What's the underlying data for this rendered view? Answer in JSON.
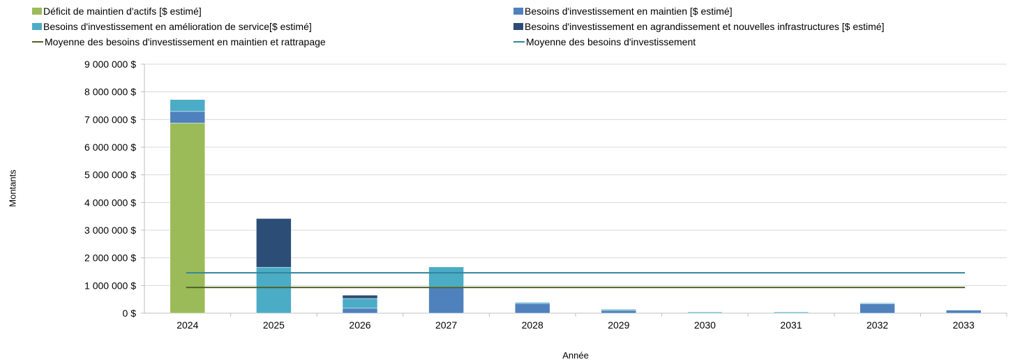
{
  "chart_data": {
    "type": "bar",
    "stacked": true,
    "title": "",
    "xlabel": "Année",
    "ylabel": "Montants",
    "ylim": [
      0,
      9000000
    ],
    "yticks": [
      "0 $",
      "1 000 000 $",
      "2 000 000 $",
      "3 000 000 $",
      "4 000 000 $",
      "5 000 000 $",
      "6 000 000 $",
      "7 000 000 $",
      "8 000 000 $",
      "9 000 000 $"
    ],
    "categories": [
      "2024",
      "2025",
      "2026",
      "2027",
      "2028",
      "2029",
      "2030",
      "2031",
      "2032",
      "2033"
    ],
    "grid": true,
    "series": [
      {
        "name": "Déficit de maintien d'actifs [$ estimé]",
        "color": "#9bbb59",
        "values": [
          6870000,
          0,
          0,
          0,
          0,
          0,
          0,
          0,
          0,
          0
        ]
      },
      {
        "name": "Besoins d'investissement en maintien [$ estimé]",
        "color": "#4f81bd",
        "values": [
          420000,
          0,
          180000,
          950000,
          350000,
          100000,
          0,
          0,
          340000,
          110000
        ]
      },
      {
        "name": "Besoins d'investissement en amélioration de service[$ estimé]",
        "color": "#4bacc6",
        "values": [
          430000,
          1660000,
          350000,
          720000,
          40000,
          40000,
          40000,
          40000,
          30000,
          0
        ]
      },
      {
        "name": "Besoins d'investissement en agrandissement et nouvelles infrastructures [$ estimé]",
        "color": "#2c4d75",
        "values": [
          0,
          1760000,
          120000,
          0,
          0,
          0,
          0,
          0,
          0,
          0
        ]
      }
    ],
    "lines": [
      {
        "name": "Moyenne des besoins d'investissement en maintien et rattrapage",
        "color": "#4f6228",
        "value": 930000
      },
      {
        "name": "Moyenne des besoins d'investissement",
        "color": "#31859c",
        "value": 1460000
      }
    ]
  }
}
